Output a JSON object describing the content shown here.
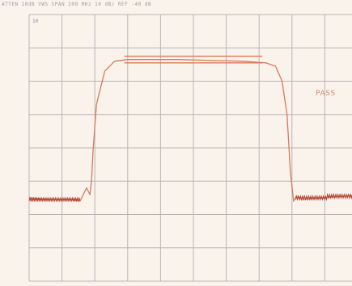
{
  "header": {
    "text": "ATTEN 10dB  VWS  SPAN  200 MHz   10 dB/   REF -40 dB"
  },
  "corner_label": "10",
  "annotation": "PASS",
  "colors": {
    "trace": "#d97a5a",
    "trace_dark": "#b44432",
    "grid": "#b9b3b8",
    "paper": "#f9f3ec",
    "annotation": "#dd8a6d"
  },
  "chart_data": {
    "type": "line",
    "title": "",
    "xlabel": "",
    "ylabel": "",
    "grid": true,
    "grid_divisions": {
      "x": 10,
      "y": 8
    },
    "xlim": [
      0,
      10
    ],
    "ylim": [
      0,
      8
    ],
    "series": [
      {
        "x": [
          0,
          0.05,
          0.6,
          1.2,
          1.55,
          1.75,
          1.85,
          1.9,
          1.95,
          2.05,
          2.3,
          2.6,
          3.0,
          4.5,
          6.5,
          7.2,
          7.5,
          7.7,
          7.85,
          7.95,
          8.05,
          8.15,
          8.3,
          9.0,
          9.6,
          10.0
        ],
        "y": [
          2.5,
          2.5,
          2.45,
          2.45,
          2.4,
          2.8,
          2.6,
          3.0,
          4.0,
          5.3,
          6.3,
          6.6,
          6.65,
          6.65,
          6.6,
          6.55,
          6.45,
          6.0,
          5.0,
          3.3,
          2.4,
          2.55,
          2.45,
          2.5,
          2.55,
          2.6
        ]
      }
    ]
  }
}
